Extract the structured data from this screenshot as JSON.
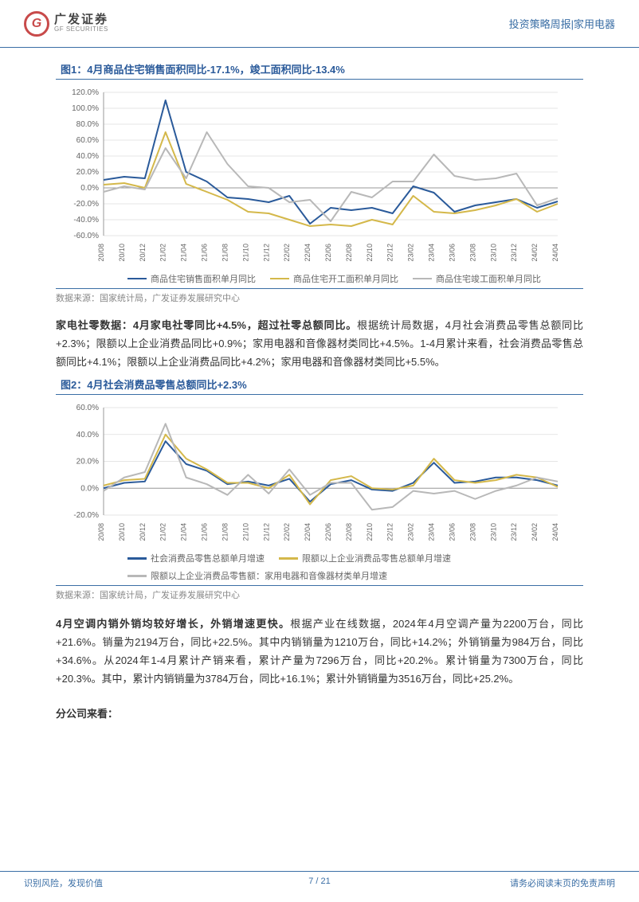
{
  "header": {
    "logo_cn": "广发证券",
    "logo_en": "GF SECURITIES",
    "right": "投资策略周报|家用电器"
  },
  "fig1": {
    "title": "图1：4月商品住宅销售面积同比-17.1%，竣工面积同比-13.4%",
    "type": "line",
    "ylim": [
      -60,
      120
    ],
    "ytick_step": 20,
    "yformat": "pct",
    "x_labels": [
      "20/08",
      "20/10",
      "20/12",
      "21/02",
      "21/04",
      "21/06",
      "21/08",
      "21/10",
      "21/12",
      "22/02",
      "22/04",
      "22/06",
      "22/08",
      "22/10",
      "22/12",
      "23/02",
      "23/04",
      "23/06",
      "23/08",
      "23/10",
      "23/12",
      "24/02",
      "24/04"
    ],
    "series": [
      {
        "name": "商品住宅销售面积单月同比",
        "color": "#2a5a9a",
        "values": [
          10,
          14,
          12,
          110,
          20,
          8,
          -12,
          -14,
          -18,
          -10,
          -45,
          -25,
          -28,
          -25,
          -32,
          2,
          -6,
          -30,
          -22,
          -18,
          -14,
          -25,
          -17
        ]
      },
      {
        "name": "商品住宅开工面积单月同比",
        "color": "#d4b84a",
        "values": [
          4,
          6,
          0,
          70,
          5,
          -5,
          -15,
          -30,
          -32,
          -40,
          -48,
          -46,
          -48,
          -40,
          -46,
          -10,
          -30,
          -32,
          -28,
          -22,
          -14,
          -30,
          -20
        ]
      },
      {
        "name": "商品住宅竣工面积单月同比",
        "color": "#b8b8b8",
        "values": [
          -5,
          2,
          -2,
          50,
          12,
          70,
          30,
          2,
          0,
          -18,
          -15,
          -42,
          -5,
          -12,
          8,
          8,
          42,
          15,
          10,
          12,
          18,
          -22,
          -13
        ]
      }
    ],
    "ylabel_fontsize": 10,
    "xlabel_fontsize": 9,
    "grid_color": "#dddddd",
    "line_width": 2,
    "background_color": "#ffffff",
    "source": "数据来源：国家统计局，广发证券发展研究中心"
  },
  "para1": {
    "lead": "家电社零数据：4月家电社零同比+4.5%，超过社零总额同比。",
    "body": "根据统计局数据，4月社会消费品零售总额同比+2.3%；限额以上企业消费品同比+0.9%；家用电器和音像器材类同比+4.5%。1-4月累计来看，社会消费品零售总额同比+4.1%；限额以上企业消费品同比+4.2%；家用电器和音像器材类同比+5.5%。"
  },
  "fig2": {
    "title": "图2：4月社会消费品零售总额同比+2.3%",
    "type": "line",
    "ylim": [
      -20,
      60
    ],
    "ytick_step": 20,
    "yformat": "pct",
    "x_labels": [
      "20/08",
      "20/10",
      "20/12",
      "21/02",
      "21/04",
      "21/06",
      "21/08",
      "21/10",
      "21/12",
      "22/02",
      "22/04",
      "22/06",
      "22/08",
      "22/10",
      "22/12",
      "23/02",
      "23/04",
      "23/06",
      "23/08",
      "23/10",
      "23/12",
      "24/02",
      "24/04"
    ],
    "series": [
      {
        "name": "社会消费品零售总额单月增速",
        "color": "#2a5a9a",
        "values": [
          0,
          4,
          5,
          35,
          18,
          13,
          3,
          5,
          2,
          7,
          -10,
          3,
          6,
          -1,
          -2,
          4,
          19,
          4,
          5,
          8,
          8,
          6,
          2
        ]
      },
      {
        "name": "限额以上企业消费品零售总额单月增速",
        "color": "#d4b84a",
        "values": [
          2,
          6,
          7,
          40,
          22,
          14,
          4,
          4,
          0,
          10,
          -12,
          6,
          9,
          0,
          -1,
          2,
          22,
          6,
          4,
          6,
          10,
          8,
          1
        ]
      },
      {
        "name": "限额以上企业消费品零售额：家用电器和音像器材类单月增速",
        "color": "#b8b8b8",
        "values": [
          -2,
          8,
          12,
          48,
          8,
          3,
          -5,
          10,
          -4,
          14,
          -5,
          4,
          4,
          -16,
          -14,
          -2,
          -4,
          -2,
          -8,
          -2,
          2,
          8,
          5
        ]
      }
    ],
    "ylabel_fontsize": 10,
    "xlabel_fontsize": 9,
    "grid_color": "#dddddd",
    "line_width": 2,
    "background_color": "#ffffff",
    "source": "数据来源：国家统计局，广发证券发展研究中心"
  },
  "para2": {
    "lead": "4月空调内销外销均较好增长，外销增速更快。",
    "body": "根据产业在线数据，2024年4月空调产量为2200万台，同比+21.6%。销量为2194万台，同比+22.5%。其中内销销量为1210万台，同比+14.2%；外销销量为984万台，同比+34.6%。从2024年1-4月累计产销来看，累计产量为7296万台，同比+20.2%。累计销量为7300万台，同比+20.3%。其中，累计内销销量为3784万台，同比+16.1%；累计外销销量为3516万台，同比+25.2%。"
  },
  "section_heading": "分公司来看：",
  "footer": {
    "left": "识别风险，发现价值",
    "right": "请务必阅读末页的免责声明",
    "page_current": "7",
    "page_total": "21"
  }
}
